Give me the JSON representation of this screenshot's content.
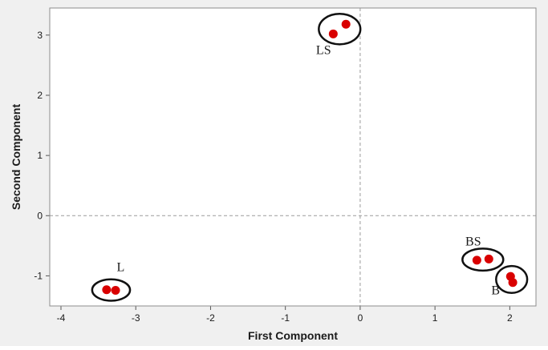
{
  "chart_data": {
    "type": "scatter",
    "title": "",
    "xlabel": "First Component",
    "ylabel": "Second Component",
    "xlim": [
      -4.15,
      2.35
    ],
    "ylim": [
      -1.5,
      3.45
    ],
    "xticks": [
      "-4",
      "-3",
      "-2",
      "-1",
      "0",
      "1",
      "2"
    ],
    "yticks": [
      "-1",
      "0",
      "1",
      "2",
      "3"
    ],
    "reference_lines": {
      "x": 0,
      "y": 0,
      "style": "dashed"
    },
    "grid": false,
    "point_color": "#d90000",
    "background_color": "#f0f0f0",
    "plot_background_color": "#ffffff",
    "groups": [
      {
        "label": "LS",
        "points": [
          {
            "x": -0.36,
            "y": 3.02
          },
          {
            "x": -0.19,
            "y": 3.18
          }
        ]
      },
      {
        "label": "L",
        "points": [
          {
            "x": -3.39,
            "y": -1.23
          },
          {
            "x": -3.27,
            "y": -1.24
          }
        ]
      },
      {
        "label": "BS",
        "points": [
          {
            "x": 1.56,
            "y": -0.74
          },
          {
            "x": 1.72,
            "y": -0.72
          }
        ]
      },
      {
        "label": "B",
        "points": [
          {
            "x": 2.01,
            "y": -1.01
          },
          {
            "x": 2.04,
            "y": -1.11
          }
        ]
      }
    ]
  }
}
